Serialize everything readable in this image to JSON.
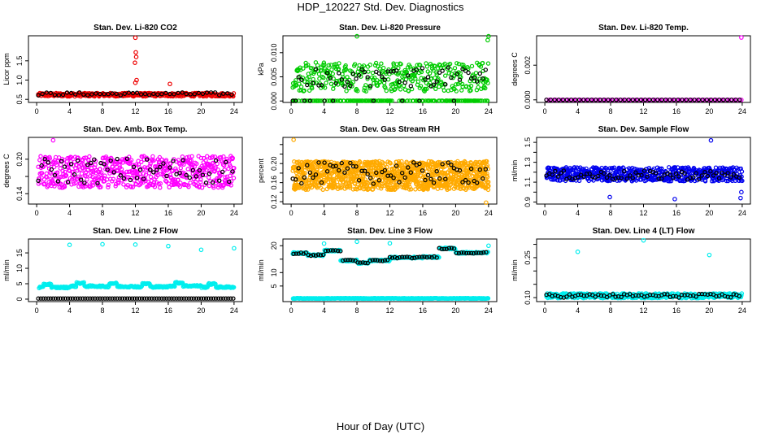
{
  "title": "HDP_120227  Std. Dev. Diagnostics",
  "xlabel": "Hour of Day (UTC)",
  "chart_data": [
    {
      "type": "scatter",
      "title": "Stan. Dev. Li-820 CO2",
      "ylabel": "Licor ppm",
      "xlim": [
        -1,
        25
      ],
      "ylim": [
        0.42,
        2.15
      ],
      "yticks": [
        0.5,
        1.0,
        1.5
      ],
      "yticklabels": [
        "0.5",
        "1.0",
        "1.5"
      ],
      "xticks": [
        0,
        4,
        8,
        12,
        16,
        20,
        24
      ],
      "xticklabels": [
        "0",
        "4",
        "8",
        "12",
        "16",
        "20",
        "24"
      ],
      "color": "#ee0000",
      "series": [
        {
          "name": "main",
          "color": "#ee0000",
          "pattern": {
            "base": 0.62,
            "noise": 0.09,
            "step": 0.06
          }
        },
        {
          "name": "hourly",
          "color": "#000000",
          "pattern": {
            "base": 0.64,
            "noise": 0.08,
            "step": 0.5
          }
        }
      ],
      "extra": {
        "x": [
          12.0,
          12.05,
          12.1,
          11.95,
          12.15,
          12.0,
          16.2
        ],
        "y": [
          2.1,
          1.72,
          1.6,
          1.45,
          1.0,
          0.93,
          0.9
        ],
        "color": "#ee0000"
      }
    },
    {
      "type": "scatter",
      "title": "Stan. Dev. Li-820 Pressure",
      "ylabel": "kPa",
      "xlim": [
        -1,
        25
      ],
      "ylim": [
        -0.0003,
        0.0135
      ],
      "yticks": [
        0.0,
        0.005,
        0.01
      ],
      "yticklabels": [
        "0.000",
        "0.005",
        "0.010"
      ],
      "xticks": [
        0,
        4,
        8,
        12,
        16,
        20,
        24
      ],
      "xticklabels": [
        "0",
        "4",
        "8",
        "12",
        "16",
        "20",
        "24"
      ],
      "color": "#00cc00",
      "series": [
        {
          "name": "main",
          "color": "#00cc00",
          "pattern": {
            "base": 0.005,
            "noise": 0.006,
            "step": 0.045,
            "zeroFrac": 0.3
          }
        },
        {
          "name": "hourly",
          "color": "#000000",
          "pattern": {
            "base": 0.005,
            "noise": 0.004,
            "step": 0.35,
            "zeroFrac": 0.25
          }
        }
      ],
      "extra": {
        "x": [
          8.0,
          23.9,
          24.0
        ],
        "y": [
          0.0134,
          0.0126,
          0.0134
        ],
        "color": "#00cc00"
      }
    },
    {
      "type": "scatter",
      "title": "Stan. Dev. Li-820 Temp.",
      "ylabel": "degrees C",
      "xlim": [
        -1,
        25
      ],
      "ylim": [
        -0.00015,
        0.0037
      ],
      "yticks": [
        0.0,
        0.002
      ],
      "yticklabels": [
        "0.000",
        "0.002"
      ],
      "xticks": [
        0,
        4,
        8,
        12,
        16,
        20,
        24
      ],
      "xticklabels": [
        "0",
        "4",
        "8",
        "12",
        "16",
        "20",
        "24"
      ],
      "color": "#ff00ff",
      "series": [
        {
          "name": "main",
          "color": "#ff00ff",
          "pattern": {
            "base": 0.0,
            "noise": 0.0,
            "step": 0.3
          }
        },
        {
          "name": "hourly",
          "color": "#000000",
          "pattern": {
            "base": 0.0,
            "noise": 0.0,
            "step": 0.5
          }
        }
      ],
      "extra": {
        "x": [
          23.9
        ],
        "y": [
          0.0036
        ],
        "color": "#ff00ff"
      }
    },
    {
      "type": "scatter",
      "title": "Stan. Dev. Amb. Box Temp.",
      "ylabel": "degrees C",
      "xlim": [
        -1,
        25
      ],
      "ylim": [
        0.122,
        0.238
      ],
      "yticks": [
        0.14,
        0.17,
        0.2
      ],
      "yticklabels": [
        "0.14",
        "",
        "0.20"
      ],
      "xticks": [
        0,
        4,
        8,
        12,
        16,
        20,
        24
      ],
      "xticklabels": [
        "0",
        "4",
        "8",
        "12",
        "16",
        "20",
        "24"
      ],
      "color": "#ff00ff",
      "series": [
        {
          "name": "main",
          "color": "#ff00ff",
          "pattern": {
            "base": 0.178,
            "noise": 0.055,
            "step": 0.04
          }
        },
        {
          "name": "hourly",
          "color": "#000000",
          "pattern": {
            "base": 0.18,
            "noise": 0.045,
            "step": 0.4
          }
        }
      ],
      "extra": {
        "x": [
          2.0
        ],
        "y": [
          0.233
        ],
        "color": "#ff00ff"
      }
    },
    {
      "type": "scatter",
      "title": "Stan. Dev. Gas Stream RH",
      "ylabel": "percent",
      "xlim": [
        -1,
        25
      ],
      "ylim": [
        0.115,
        0.255
      ],
      "yticks": [
        0.12,
        0.14,
        0.16,
        0.18,
        0.2,
        0.22,
        0.24
      ],
      "yticklabels": [
        "0.12",
        "",
        "0.16",
        "",
        "0.20",
        "",
        ""
      ],
      "xticks": [
        0,
        4,
        8,
        12,
        16,
        20,
        24
      ],
      "xticklabels": [
        "0",
        "4",
        "8",
        "12",
        "16",
        "20",
        "24"
      ],
      "color": "#ffaa00",
      "series": [
        {
          "name": "main",
          "color": "#ffaa00",
          "pattern": {
            "base": 0.175,
            "noise": 0.06,
            "step": 0.02
          }
        },
        {
          "name": "hourly",
          "color": "#000000",
          "pattern": {
            "base": 0.18,
            "noise": 0.045,
            "step": 0.35
          }
        }
      ],
      "extra": {
        "x": [
          0.3,
          23.7
        ],
        "y": [
          0.25,
          0.118
        ],
        "color": "#ffaa00"
      }
    },
    {
      "type": "scatter",
      "title": "Stan. Dev. Sample Flow",
      "ylabel": "ml/min",
      "xlim": [
        -1,
        25
      ],
      "ylim": [
        0.88,
        1.55
      ],
      "yticks": [
        0.9,
        1.0,
        1.1,
        1.2,
        1.3,
        1.4,
        1.5
      ],
      "yticklabels": [
        "0.9",
        "",
        "1.1",
        "",
        "1.3",
        "",
        "1.5"
      ],
      "xticks": [
        0,
        4,
        8,
        12,
        16,
        20,
        24
      ],
      "xticklabels": [
        "0",
        "4",
        "8",
        "12",
        "16",
        "20",
        "24"
      ],
      "color": "#0000ee",
      "series": [
        {
          "name": "main",
          "color": "#0000ee",
          "pattern": {
            "base": 1.18,
            "noise": 0.14,
            "step": 0.04
          }
        },
        {
          "name": "hourly",
          "color": "#000000",
          "pattern": {
            "base": 1.17,
            "noise": 0.09,
            "step": 0.35
          }
        }
      ],
      "extra": {
        "x": [
          7.9,
          15.8,
          20.2,
          23.9,
          23.8
        ],
        "y": [
          0.95,
          0.93,
          1.52,
          1.0,
          0.94
        ],
        "color": "#0000ee"
      }
    },
    {
      "type": "scatter",
      "title": "Stan. Dev. Line 2 Flow",
      "ylabel": "ml/min",
      "xlim": [
        -1,
        25
      ],
      "ylim": [
        -0.8,
        19.5
      ],
      "yticks": [
        0,
        5,
        10,
        15
      ],
      "yticklabels": [
        "0",
        "5",
        "10",
        "15"
      ],
      "xticks": [
        0,
        4,
        8,
        12,
        16,
        20,
        24
      ],
      "xticklabels": [
        "0",
        "4",
        "8",
        "12",
        "16",
        "20",
        "24"
      ],
      "color": "#00eeee",
      "series": [
        {
          "name": "main",
          "color": "#00eeee",
          "pattern": {
            "kind": "line2"
          }
        },
        {
          "name": "zero",
          "color": "#000000",
          "pattern": {
            "base": 0.2,
            "noise": 0.0,
            "step": 0.3
          }
        }
      ],
      "extra": {
        "x": [
          4.0,
          8.0,
          12.0,
          16.0,
          20.0,
          24.0
        ],
        "y": [
          17.6,
          17.8,
          17.7,
          17.2,
          16.0,
          16.5
        ],
        "color": "#00eeee"
      }
    },
    {
      "type": "scatter",
      "title": "Stan. Dev. Line 3 Flow",
      "ylabel": "ml/min",
      "xlim": [
        -1,
        25
      ],
      "ylim": [
        -0.8,
        22.5
      ],
      "yticks": [
        5,
        10,
        15,
        20
      ],
      "yticklabels": [
        "5",
        "10",
        "",
        "20"
      ],
      "xticks": [
        0,
        4,
        8,
        12,
        16,
        20,
        24
      ],
      "xticklabels": [
        "0",
        "4",
        "8",
        "12",
        "16",
        "20",
        "24"
      ],
      "color": "#00eeee",
      "series": [
        {
          "name": "main",
          "color": "#00eeee",
          "pattern": {
            "kind": "line3"
          }
        },
        {
          "name": "hourly",
          "color": "#000000",
          "pattern": {
            "kind": "line3black"
          }
        }
      ],
      "extra": {
        "x": [
          4.0,
          8.0,
          12.0,
          24.0
        ],
        "y": [
          20.8,
          21.5,
          20.9,
          20.0
        ],
        "color": "#00eeee"
      }
    },
    {
      "type": "scatter",
      "title": "Stan. Dev. Line 4 (LT) Flow",
      "ylabel": "ml/min",
      "xlim": [
        -1,
        25
      ],
      "ylim": [
        0.085,
        0.32
      ],
      "yticks": [
        0.1,
        0.15,
        0.2,
        0.25,
        0.3
      ],
      "yticklabels": [
        "0.10",
        "",
        "",
        "0.25",
        ""
      ],
      "xticks": [
        0,
        4,
        8,
        12,
        16,
        20,
        24
      ],
      "xticklabels": [
        "0",
        "4",
        "8",
        "12",
        "16",
        "20",
        "24"
      ],
      "color": "#00eeee",
      "series": [
        {
          "name": "main",
          "color": "#00eeee",
          "pattern": {
            "base": 0.107,
            "noise": 0.018,
            "step": 0.05
          }
        },
        {
          "name": "hourly",
          "color": "#000000",
          "pattern": {
            "base": 0.107,
            "noise": 0.014,
            "step": 0.35
          }
        }
      ],
      "extra": {
        "x": [
          4.0,
          12.0,
          20.0
        ],
        "y": [
          0.272,
          0.315,
          0.26
        ],
        "color": "#00eeee"
      }
    }
  ]
}
